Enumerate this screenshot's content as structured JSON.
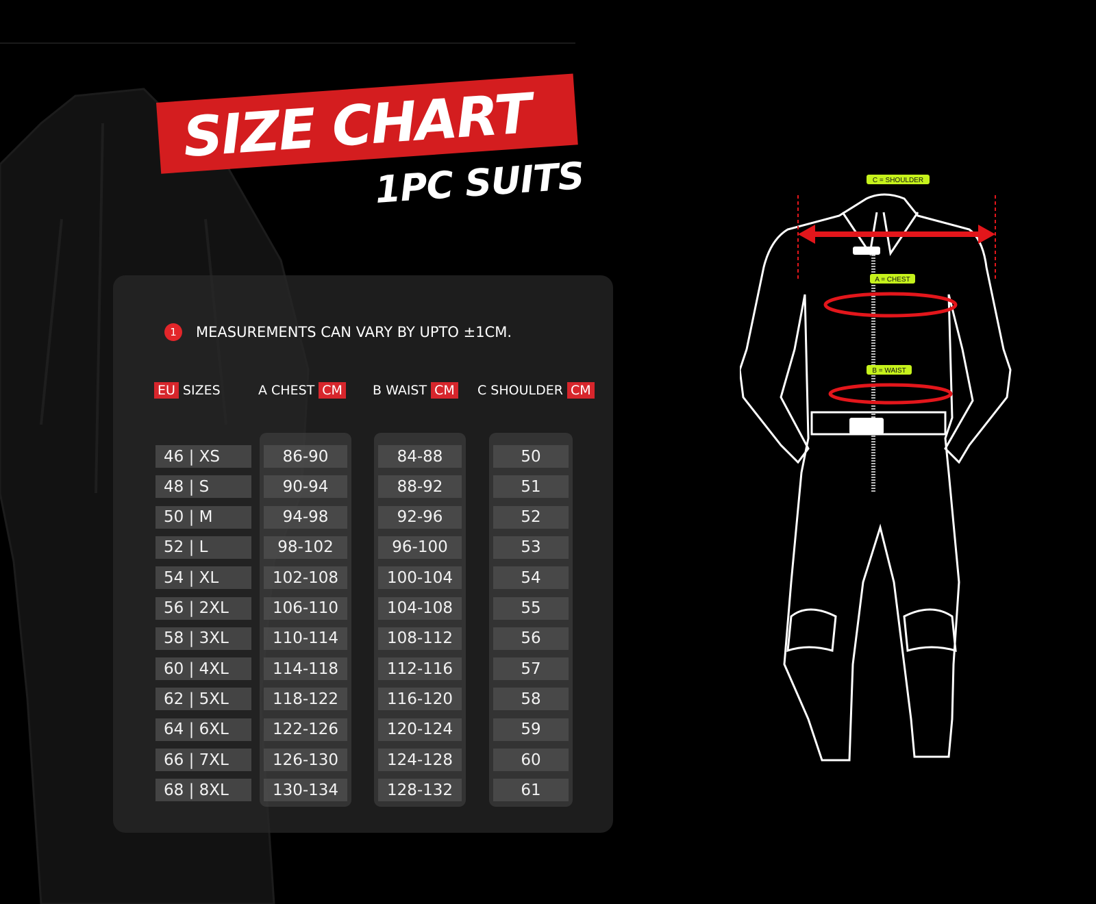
{
  "title": "SIZE CHART",
  "subtitle": "1PC SUITS",
  "note": {
    "icon": "info-number-1",
    "number": "1",
    "text": "MEASUREMENTS CAN VARY BY UPTO ±1CM."
  },
  "headers": [
    {
      "tag_before": "EU",
      "label": "SIZES"
    },
    {
      "label": "A CHEST",
      "tag_after": "CM"
    },
    {
      "label": "B WAIST",
      "tag_after": "CM"
    },
    {
      "label": "C SHOULDER",
      "tag_after": "CM"
    }
  ],
  "rows": [
    [
      "46 | XS",
      "86-90",
      "84-88",
      "50"
    ],
    [
      "48 | S",
      "90-94",
      "88-92",
      "51"
    ],
    [
      "50 | M",
      "94-98",
      "92-96",
      "52"
    ],
    [
      "52 | L",
      "98-102",
      "96-100",
      "53"
    ],
    [
      "54 | XL",
      "102-108",
      "100-104",
      "54"
    ],
    [
      "56 | 2XL",
      "106-110",
      "104-108",
      "55"
    ],
    [
      "58 | 3XL",
      "110-114",
      "108-112",
      "56"
    ],
    [
      "60 | 4XL",
      "114-118",
      "112-116",
      "57"
    ],
    [
      "62 | 5XL",
      "118-122",
      "116-120",
      "58"
    ],
    [
      "64 | 6XL",
      "122-126",
      "120-124",
      "59"
    ],
    [
      "66 | 7XL",
      "126-130",
      "124-128",
      "60"
    ],
    [
      "68 | 8XL",
      "130-134",
      "128-132",
      "61"
    ]
  ],
  "diagram": {
    "labels": {
      "shoulder": "C = SHOULDER",
      "chest": "A = CHEST",
      "waist": "B = WAIST"
    },
    "label_color": "#c6f21c",
    "arrow_color": "#e3161b"
  },
  "colors": {
    "accent": "#d41d1f",
    "background": "#000000",
    "panel": "#282828"
  }
}
